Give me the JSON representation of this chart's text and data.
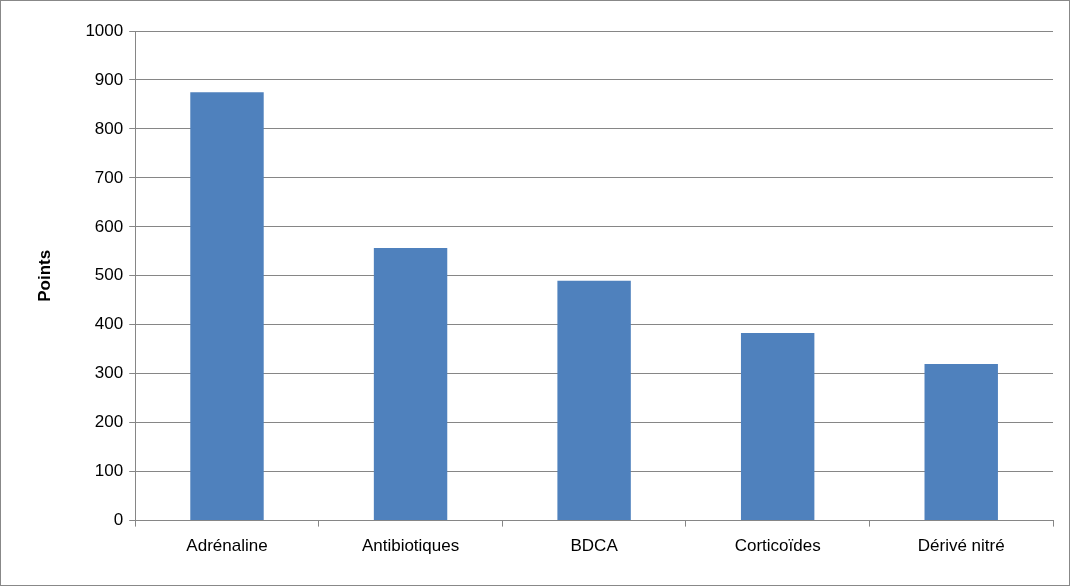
{
  "chart_data": {
    "type": "bar",
    "ylabel": "Points",
    "categories": [
      "Adrénaline",
      "Antibiotiques",
      "BDCA",
      "Corticoïdes",
      "Dérivé nitré"
    ],
    "values": [
      875,
      557,
      490,
      383,
      320
    ],
    "color": "#4f81bd",
    "ylim": [
      0,
      1000
    ],
    "yticks": [
      0,
      100,
      200,
      300,
      400,
      500,
      600,
      700,
      800,
      900,
      1000
    ],
    "grid": "y",
    "legend": false
  }
}
